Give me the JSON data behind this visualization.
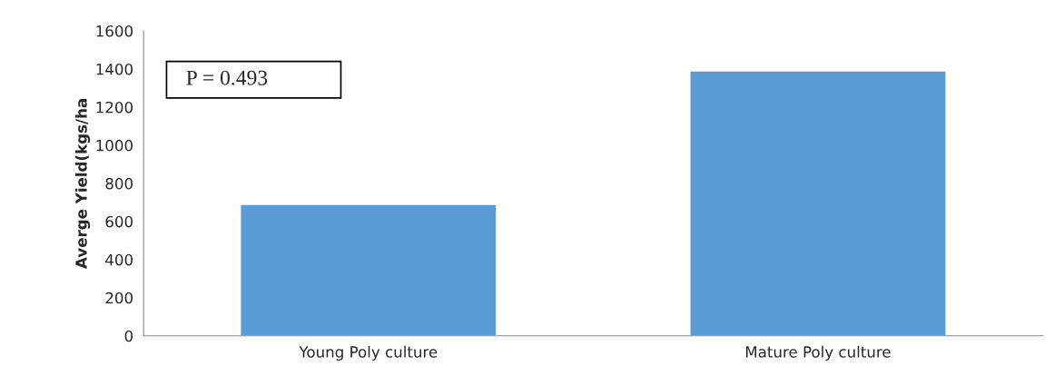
{
  "chart_data": {
    "type": "bar",
    "ylabel": "Averge Yield(kgs/ha",
    "categories": [
      "Young Poly culture",
      "Mature Poly culture"
    ],
    "values": [
      690,
      1390
    ],
    "color": "#5b9bd5",
    "ylim": [
      0,
      1600
    ],
    "yticks": [
      0,
      200,
      400,
      600,
      800,
      1000,
      1200,
      1400,
      1600
    ],
    "annotations": [
      "P = 0.493"
    ]
  }
}
